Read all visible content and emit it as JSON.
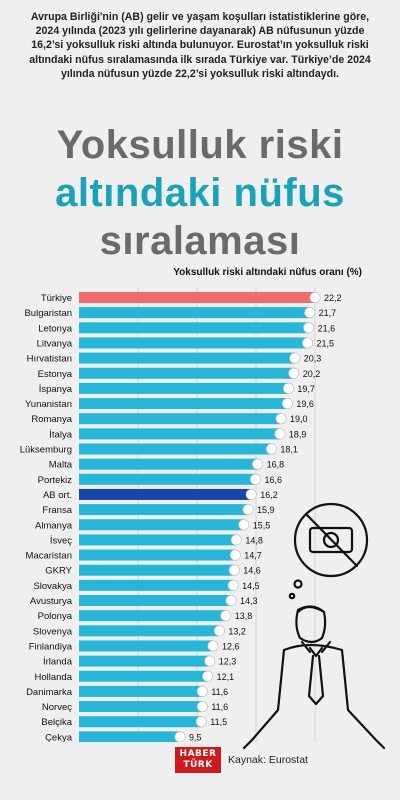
{
  "intro_text": "Avrupa Birliği'nin (AB) gelir ve yaşam koşulları istatistiklerine göre, 2024 yılında (2023 yılı gelirlerine dayanarak) AB nüfusunun yüzde 16,2’si yoksulluk riski altında bulunuyor. Eurostat’ın yoksulluk riski altındaki nüfus sıralamasında ilk sırada Türkiye var. Türkiye’de 2024 yılında nüfusun yüzde 22,2’si yoksulluk riski altındaydı.",
  "title_line1": "Yoksulluk riski",
  "title_line2": "altındaki nüfus",
  "title_line3": "sıralaması",
  "colors": {
    "bar": "#27b6d8",
    "highlight_turkey": "#f06b6b",
    "highlight_eu": "#1846a8",
    "title_gray": "#6a6a6a",
    "title_teal": "#1aa3b8",
    "logo_red": "#cc1a1f"
  },
  "footer": {
    "logo_line1": "HABER",
    "logo_line2": "TÜRK",
    "source": "Kaynak: Eurostat"
  },
  "chart_data": {
    "type": "bar",
    "orientation": "horizontal",
    "ylabel": "Yoksulluk riski altındaki nüfus oranı (%)",
    "categories": [
      "Türkiye",
      "Bulgaristan",
      "Letonya",
      "Litvanya",
      "Hırvatistan",
      "Estonya",
      "İspanya",
      "Yunanistan",
      "Romanya",
      "İtalya",
      "Lüksemburg",
      "Malta",
      "Portekiz",
      "AB ort.",
      "Fransa",
      "Almanya",
      "İsveç",
      "Macaristan",
      "GKRY",
      "Slovakya",
      "Avusturya",
      "Polonya",
      "Slovenya",
      "Finlandiya",
      "İrlanda",
      "Hollanda",
      "Danimarka",
      "Norveç",
      "Belçika",
      "Çekya"
    ],
    "values": [
      22.2,
      21.7,
      21.6,
      21.5,
      20.3,
      20.2,
      19.7,
      19.6,
      19.0,
      18.9,
      18.1,
      16.8,
      16.6,
      16.2,
      15.9,
      15.5,
      14.8,
      14.7,
      14.6,
      14.5,
      14.3,
      13.8,
      13.2,
      12.6,
      12.3,
      12.1,
      11.6,
      11.6,
      11.5,
      9.5
    ],
    "value_labels": [
      "22,2",
      "21,7",
      "21,6",
      "21,5",
      "20,3",
      "20,2",
      "19,7",
      "19,6",
      "19,0",
      "18,9",
      "18,1",
      "16,8",
      "16,6",
      "16,2",
      "15,9",
      "15,5",
      "14,8",
      "14,7",
      "14,6",
      "14,5",
      "14,3",
      "13,8",
      "13,2",
      "12,6",
      "12,3",
      "12,1",
      "11,6",
      "11,6",
      "11,5",
      "9,5"
    ],
    "highlight": {
      "Türkiye": "highlight_turkey",
      "AB ort.": "highlight_eu"
    },
    "xlim": [
      0,
      22.2
    ],
    "grid": true
  }
}
